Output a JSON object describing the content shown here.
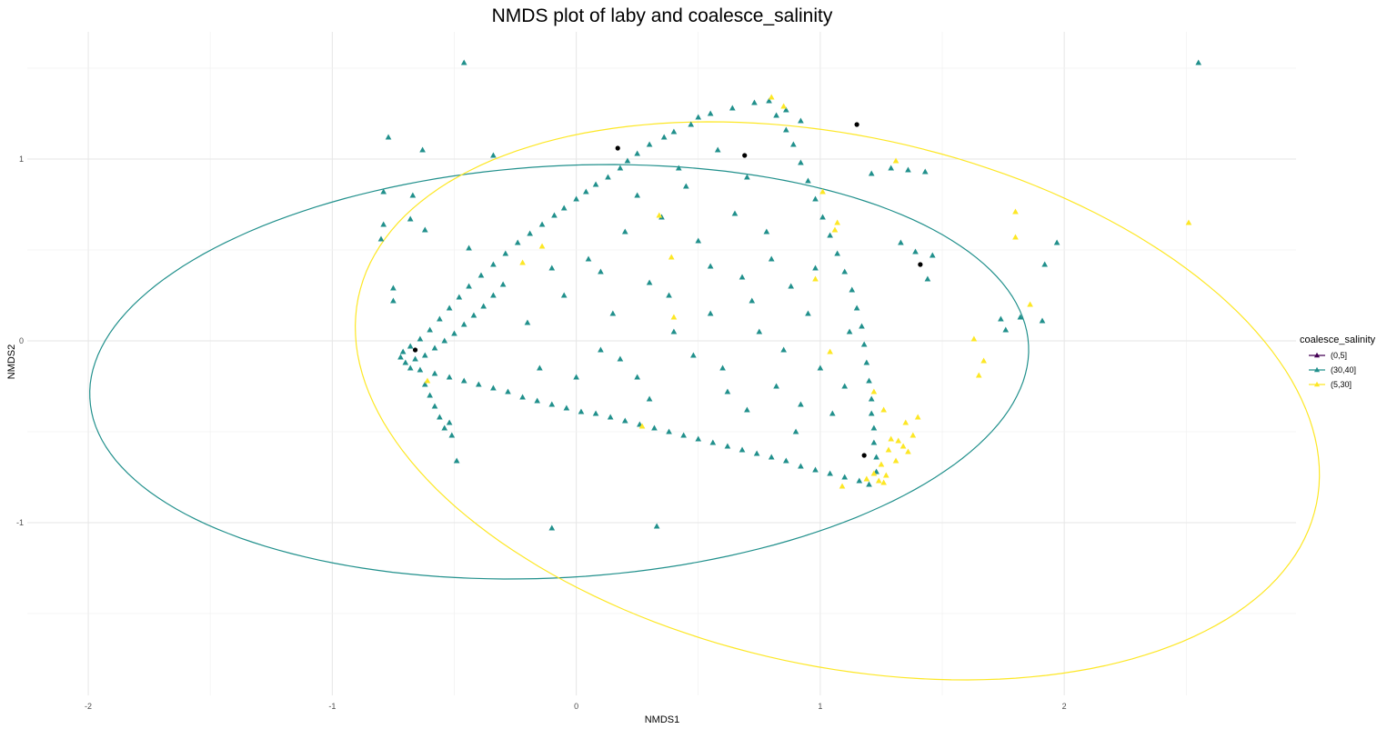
{
  "chart_data": {
    "type": "scatter",
    "title": "NMDS plot of laby and coalesce_salinity",
    "xlabel": "NMDS1",
    "ylabel": "NMDS2",
    "xlim": [
      -2.25,
      2.95
    ],
    "ylim": [
      -1.95,
      1.7
    ],
    "x_ticks": [
      -2,
      -1,
      0,
      1,
      2
    ],
    "y_ticks": [
      -1,
      0,
      1
    ],
    "x_tick_labels": [
      "-2",
      "-1",
      "0",
      "1",
      "2"
    ],
    "y_tick_labels": [
      "-1",
      "0",
      "1"
    ],
    "grid": true,
    "legend": {
      "title": "coalesce_salinity",
      "position": "right",
      "entries": [
        {
          "label": "(0,5]",
          "color": "#440154"
        },
        {
          "label": "(30,40]",
          "color": "#21908c"
        },
        {
          "label": "(5,30]",
          "color": "#fde725"
        }
      ]
    },
    "centroids": {
      "color": "#000000",
      "points": [
        [
          -0.66,
          -0.05
        ],
        [
          0.17,
          1.06
        ],
        [
          0.69,
          1.02
        ],
        [
          1.15,
          1.19
        ],
        [
          1.41,
          0.42
        ],
        [
          1.18,
          -0.63
        ]
      ]
    },
    "ellipses": [
      {
        "series": "(30,40]",
        "color": "#21908c",
        "center": [
          -0.07,
          -0.17
        ],
        "rx": 1.93,
        "ry": 1.13,
        "angle": 5.5
      },
      {
        "series": "(5,30]",
        "color": "#fde725",
        "center": [
          1.07,
          -0.33
        ],
        "rx": 2.06,
        "ry": 1.42,
        "angle": -23
      }
    ],
    "series": [
      {
        "name": "(30,40]",
        "color": "#21908c",
        "shape": "triangle",
        "points": [
          [
            -0.46,
            1.53
          ],
          [
            2.55,
            1.53
          ],
          [
            -0.77,
            1.12
          ],
          [
            -0.63,
            1.05
          ],
          [
            -0.34,
            1.02
          ],
          [
            -0.79,
            0.82
          ],
          [
            -0.67,
            0.8
          ],
          [
            -0.68,
            0.67
          ],
          [
            -0.62,
            0.61
          ],
          [
            -0.79,
            0.64
          ],
          [
            -0.8,
            0.56
          ],
          [
            -0.44,
            0.51
          ],
          [
            -0.75,
            0.29
          ],
          [
            -0.75,
            0.22
          ],
          [
            1.39,
            0.49
          ],
          [
            1.46,
            0.47
          ],
          [
            1.44,
            0.34
          ],
          [
            1.92,
            0.42
          ],
          [
            1.97,
            0.54
          ],
          [
            1.82,
            0.13
          ],
          [
            1.74,
            0.12
          ],
          [
            1.76,
            0.06
          ],
          [
            1.91,
            0.11
          ],
          [
            -0.1,
            -1.03
          ],
          [
            0.33,
            -1.02
          ],
          [
            -0.49,
            -0.66
          ],
          [
            -0.51,
            -0.52
          ],
          [
            -0.52,
            -0.45
          ],
          [
            1.21,
            0.92
          ],
          [
            1.29,
            0.95
          ],
          [
            1.36,
            0.94
          ],
          [
            1.43,
            0.93
          ],
          [
            1.33,
            0.54
          ],
          [
            0.92,
            1.21
          ],
          [
            0.86,
            1.27
          ],
          [
            0.79,
            1.32
          ],
          [
            0.73,
            1.31
          ],
          [
            0.64,
            1.28
          ],
          [
            0.55,
            1.25
          ],
          [
            0.5,
            1.23
          ],
          [
            0.47,
            1.19
          ],
          [
            0.4,
            1.15
          ],
          [
            0.36,
            1.12
          ],
          [
            0.3,
            1.08
          ],
          [
            0.25,
            1.03
          ],
          [
            0.21,
            0.99
          ],
          [
            0.18,
            0.95
          ],
          [
            0.13,
            0.9
          ],
          [
            0.08,
            0.86
          ],
          [
            0.04,
            0.82
          ],
          [
            0.0,
            0.78
          ],
          [
            -0.05,
            0.73
          ],
          [
            -0.09,
            0.69
          ],
          [
            -0.14,
            0.64
          ],
          [
            -0.19,
            0.59
          ],
          [
            -0.24,
            0.54
          ],
          [
            -0.29,
            0.48
          ],
          [
            -0.34,
            0.42
          ],
          [
            -0.39,
            0.36
          ],
          [
            -0.44,
            0.3
          ],
          [
            -0.48,
            0.24
          ],
          [
            -0.52,
            0.18
          ],
          [
            -0.56,
            0.12
          ],
          [
            -0.6,
            0.06
          ],
          [
            -0.64,
            0.01
          ],
          [
            -0.68,
            -0.03
          ],
          [
            -0.71,
            -0.06
          ],
          [
            -0.72,
            -0.09
          ],
          [
            -0.7,
            -0.12
          ],
          [
            -0.66,
            -0.1
          ],
          [
            -0.62,
            -0.08
          ],
          [
            -0.58,
            -0.04
          ],
          [
            -0.54,
            0.0
          ],
          [
            -0.5,
            0.04
          ],
          [
            -0.46,
            0.09
          ],
          [
            -0.42,
            0.14
          ],
          [
            -0.38,
            0.19
          ],
          [
            -0.34,
            0.25
          ],
          [
            -0.3,
            0.31
          ],
          [
            -0.68,
            -0.15
          ],
          [
            -0.64,
            -0.16
          ],
          [
            -0.58,
            -0.18
          ],
          [
            -0.52,
            -0.2
          ],
          [
            -0.46,
            -0.22
          ],
          [
            -0.4,
            -0.24
          ],
          [
            -0.34,
            -0.26
          ],
          [
            -0.28,
            -0.28
          ],
          [
            -0.22,
            -0.31
          ],
          [
            -0.16,
            -0.33
          ],
          [
            -0.1,
            -0.35
          ],
          [
            -0.04,
            -0.37
          ],
          [
            0.02,
            -0.39
          ],
          [
            0.08,
            -0.4
          ],
          [
            0.14,
            -0.42
          ],
          [
            0.2,
            -0.44
          ],
          [
            0.26,
            -0.46
          ],
          [
            0.32,
            -0.48
          ],
          [
            0.38,
            -0.5
          ],
          [
            0.44,
            -0.52
          ],
          [
            0.5,
            -0.54
          ],
          [
            0.56,
            -0.56
          ],
          [
            0.62,
            -0.58
          ],
          [
            0.68,
            -0.6
          ],
          [
            0.74,
            -0.62
          ],
          [
            0.8,
            -0.64
          ],
          [
            0.86,
            -0.66
          ],
          [
            0.92,
            -0.69
          ],
          [
            0.98,
            -0.71
          ],
          [
            1.04,
            -0.73
          ],
          [
            1.1,
            -0.75
          ],
          [
            1.16,
            -0.77
          ],
          [
            1.2,
            -0.79
          ],
          [
            -0.62,
            -0.24
          ],
          [
            -0.6,
            -0.3
          ],
          [
            -0.58,
            -0.36
          ],
          [
            -0.56,
            -0.42
          ],
          [
            -0.54,
            -0.48
          ],
          [
            1.23,
            -0.72
          ],
          [
            1.23,
            -0.64
          ],
          [
            1.22,
            -0.56
          ],
          [
            1.22,
            -0.48
          ],
          [
            1.21,
            -0.4
          ],
          [
            1.21,
            -0.32
          ],
          [
            1.2,
            -0.22
          ],
          [
            1.19,
            -0.12
          ],
          [
            1.18,
            -0.02
          ],
          [
            1.17,
            0.08
          ],
          [
            1.15,
            0.18
          ],
          [
            1.13,
            0.28
          ],
          [
            1.1,
            0.38
          ],
          [
            1.07,
            0.48
          ],
          [
            1.04,
            0.58
          ],
          [
            1.01,
            0.68
          ],
          [
            0.98,
            0.78
          ],
          [
            0.95,
            0.88
          ],
          [
            0.92,
            0.98
          ],
          [
            0.89,
            1.08
          ],
          [
            0.86,
            1.16
          ],
          [
            0.82,
            1.24
          ],
          [
            0.1,
            0.38
          ],
          [
            0.3,
            0.32
          ],
          [
            0.55,
            0.41
          ],
          [
            0.72,
            0.22
          ],
          [
            0.4,
            0.05
          ],
          [
            0.1,
            -0.05
          ],
          [
            -0.2,
            0.1
          ],
          [
            0.25,
            -0.2
          ],
          [
            0.6,
            -0.15
          ],
          [
            0.85,
            -0.05
          ],
          [
            0.95,
            0.15
          ],
          [
            0.8,
            0.45
          ],
          [
            0.65,
            0.7
          ],
          [
            0.45,
            0.85
          ],
          [
            0.2,
            0.6
          ],
          [
            -0.05,
            0.25
          ],
          [
            0.0,
            -0.2
          ],
          [
            0.3,
            -0.32
          ],
          [
            0.7,
            -0.38
          ],
          [
            0.9,
            -0.5
          ],
          [
            1.05,
            -0.4
          ],
          [
            1.0,
            -0.15
          ],
          [
            0.5,
            0.55
          ],
          [
            0.35,
            0.68
          ],
          [
            0.15,
            0.15
          ],
          [
            -0.15,
            -0.15
          ],
          [
            0.55,
            0.15
          ],
          [
            0.75,
            0.05
          ],
          [
            0.62,
            -0.28
          ],
          [
            0.88,
            0.3
          ],
          [
            0.98,
            0.4
          ],
          [
            0.42,
            0.95
          ],
          [
            0.58,
            1.05
          ],
          [
            0.7,
            0.9
          ],
          [
            0.78,
            0.6
          ],
          [
            0.25,
            0.8
          ],
          [
            0.05,
            0.45
          ],
          [
            -0.1,
            0.4
          ],
          [
            0.18,
            -0.1
          ],
          [
            0.48,
            -0.08
          ],
          [
            0.82,
            -0.25
          ],
          [
            1.1,
            -0.25
          ],
          [
            1.12,
            0.05
          ],
          [
            0.92,
            -0.35
          ],
          [
            0.38,
            0.25
          ],
          [
            0.68,
            0.35
          ]
        ]
      },
      {
        "name": "(5,30]",
        "color": "#fde725",
        "shape": "triangle",
        "points": [
          [
            0.8,
            1.34
          ],
          [
            0.85,
            1.29
          ],
          [
            1.31,
            0.99
          ],
          [
            1.8,
            0.71
          ],
          [
            1.8,
            0.57
          ],
          [
            2.51,
            0.65
          ],
          [
            1.86,
            0.2
          ],
          [
            1.63,
            0.01
          ],
          [
            1.65,
            -0.19
          ],
          [
            1.67,
            -0.11
          ],
          [
            1.01,
            0.82
          ],
          [
            1.07,
            0.65
          ],
          [
            1.06,
            0.61
          ],
          [
            0.98,
            0.34
          ],
          [
            1.04,
            -0.06
          ],
          [
            0.39,
            0.46
          ],
          [
            0.34,
            0.69
          ],
          [
            -0.14,
            0.52
          ],
          [
            -0.22,
            0.43
          ],
          [
            0.4,
            0.13
          ],
          [
            0.27,
            -0.47
          ],
          [
            -0.61,
            -0.22
          ],
          [
            1.22,
            -0.28
          ],
          [
            1.26,
            -0.38
          ],
          [
            1.35,
            -0.45
          ],
          [
            1.38,
            -0.52
          ],
          [
            1.4,
            -0.42
          ],
          [
            1.32,
            -0.55
          ],
          [
            1.28,
            -0.6
          ],
          [
            1.25,
            -0.68
          ],
          [
            1.22,
            -0.73
          ],
          [
            1.24,
            -0.77
          ],
          [
            1.27,
            -0.74
          ],
          [
            1.31,
            -0.66
          ],
          [
            1.36,
            -0.61
          ],
          [
            1.29,
            -0.54
          ],
          [
            1.34,
            -0.58
          ],
          [
            1.26,
            -0.78
          ],
          [
            1.19,
            -0.76
          ],
          [
            1.09,
            -0.8
          ]
        ]
      },
      {
        "name": "(0,5]",
        "color": "#440154",
        "shape": "triangle",
        "points": []
      }
    ]
  }
}
